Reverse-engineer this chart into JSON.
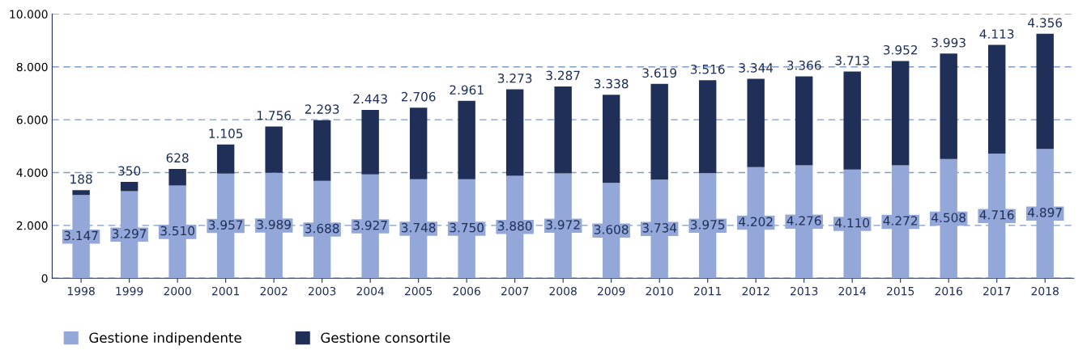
{
  "chart_data": {
    "type": "bar",
    "stacked": true,
    "categories": [
      "1998",
      "1999",
      "2000",
      "2001",
      "2002",
      "2003",
      "2004",
      "2005",
      "2006",
      "2007",
      "2008",
      "2009",
      "2010",
      "2011",
      "2012",
      "2013",
      "2014",
      "2015",
      "2016",
      "2017",
      "2018"
    ],
    "series": [
      {
        "name": "Gestione indipendente",
        "color": "#93a8d8",
        "values": [
          3147,
          3297,
          3510,
          3957,
          3989,
          3688,
          3927,
          3748,
          3750,
          3880,
          3972,
          3608,
          3734,
          3975,
          4202,
          4276,
          4110,
          4272,
          4508,
          4716,
          4897
        ],
        "value_labels": [
          "3.147",
          "3.297",
          "3.510",
          "3.957",
          "3.989",
          "3.688",
          "3.927",
          "3.748",
          "3.750",
          "3.880",
          "3.972",
          "3.608",
          "3.734",
          "3.975",
          "4.202",
          "4.276",
          "4.110",
          "4.272",
          "4.508",
          "4.716",
          "4.897"
        ]
      },
      {
        "name": "Gestione consortile",
        "color": "#1f2f57",
        "values": [
          188,
          350,
          628,
          1105,
          1756,
          2293,
          2443,
          2706,
          2961,
          3273,
          3287,
          3338,
          3619,
          3516,
          3344,
          3366,
          3713,
          3952,
          3993,
          4113,
          4356
        ],
        "value_labels": [
          "188",
          "350",
          "628",
          "1.105",
          "1.756",
          "2.293",
          "2.443",
          "2.706",
          "2.961",
          "3.273",
          "3.287",
          "3.338",
          "3.619",
          "3.516",
          "3.344",
          "3.366",
          "3.713",
          "3.952",
          "3.993",
          "4.113",
          "4.356"
        ]
      }
    ],
    "ylim": [
      0,
      10000
    ],
    "yticks": [
      0,
      {
        "value": 2000,
        "label": "2.000"
      },
      {
        "value": 4000,
        "label": "4.000"
      },
      {
        "value": 6000,
        "label": "6.000"
      },
      {
        "value": 8000,
        "label": "8.000"
      },
      {
        "value": 10000,
        "label": "10.000"
      }
    ],
    "grid": "y",
    "line_style": "dashed",
    "legend": "bottom left"
  }
}
